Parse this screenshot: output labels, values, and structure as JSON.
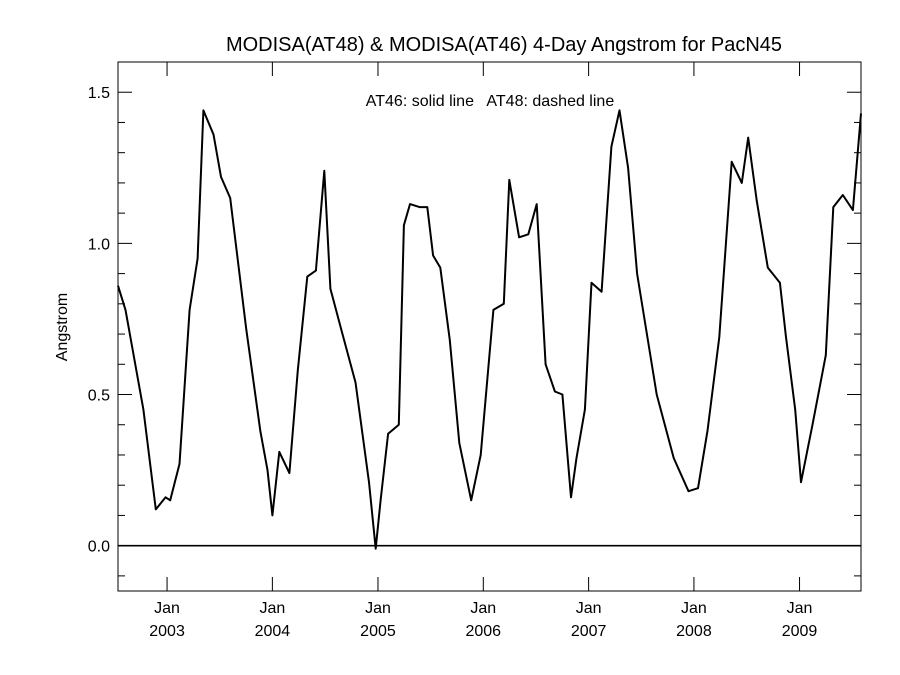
{
  "chart_data": {
    "type": "line",
    "title": "MODISA(AT48) & MODISA(AT46) 4-Day Angstrom for PacN45",
    "ylabel": "Angstrom",
    "xlabel": "",
    "annotation": "AT46: solid line   AT48: dashed line",
    "ylim": [
      -0.15,
      1.6
    ],
    "xlim": [
      "2002-07-15",
      "2009-08-02"
    ],
    "y_ticks": [
      "0.0",
      "0.5",
      "1.0",
      "1.5"
    ],
    "y_tick_values": [
      0.0,
      0.5,
      1.0,
      1.5
    ],
    "x_ticks": [
      {
        "date": "2003-01-01",
        "month": "Jan",
        "year": "2003"
      },
      {
        "date": "2004-01-01",
        "month": "Jan",
        "year": "2004"
      },
      {
        "date": "2005-01-01",
        "month": "Jan",
        "year": "2005"
      },
      {
        "date": "2006-01-01",
        "month": "Jan",
        "year": "2006"
      },
      {
        "date": "2007-01-01",
        "month": "Jan",
        "year": "2007"
      },
      {
        "date": "2008-01-01",
        "month": "Jan",
        "year": "2008"
      },
      {
        "date": "2009-01-01",
        "month": "Jan",
        "year": "2009"
      }
    ],
    "reference_line": 0.0,
    "grid": false,
    "x": [
      "2002-07-15",
      "2002-08-10",
      "2002-10-11",
      "2002-11-23",
      "2002-12-27",
      "2003-01-12",
      "2003-02-13",
      "2003-03-20",
      "2003-04-17",
      "2003-05-07",
      "2003-06-11",
      "2003-07-07",
      "2003-08-08",
      "2003-10-02",
      "2003-11-20",
      "2003-12-15",
      "2004-01-01",
      "2004-01-25",
      "2004-02-29",
      "2004-03-29",
      "2004-05-01",
      "2004-05-31",
      "2004-06-29",
      "2004-07-20",
      "2004-08-31",
      "2004-10-15",
      "2004-12-01",
      "2004-12-24",
      "2005-01-10",
      "2005-02-05",
      "2005-03-14",
      "2005-04-01",
      "2005-04-22",
      "2005-05-25",
      "2005-06-21",
      "2005-07-11",
      "2005-08-05",
      "2005-09-07",
      "2005-10-10",
      "2005-11-20",
      "2005-12-23",
      "2006-02-05",
      "2006-03-13",
      "2006-04-01",
      "2006-05-05",
      "2006-06-06",
      "2006-07-05",
      "2006-08-05",
      "2006-09-06",
      "2006-10-02",
      "2006-11-01",
      "2006-11-20",
      "2006-12-19",
      "2007-01-11",
      "2007-02-15",
      "2007-03-21",
      "2007-04-18",
      "2007-05-18",
      "2007-06-18",
      "2007-08-25",
      "2007-10-23",
      "2007-12-13",
      "2008-01-15",
      "2008-02-17",
      "2008-03-29",
      "2008-05-11",
      "2008-06-15",
      "2008-07-07",
      "2008-08-06",
      "2008-09-13",
      "2008-10-25",
      "2008-11-15",
      "2008-12-17",
      "2009-01-06",
      "2009-02-15",
      "2009-04-02",
      "2009-04-28",
      "2009-05-31",
      "2009-07-05",
      "2009-08-02"
    ],
    "series": [
      {
        "values": [
          0.86,
          0.78,
          0.45,
          0.12,
          0.16,
          0.15,
          0.27,
          0.78,
          0.95,
          1.44,
          1.36,
          1.22,
          1.15,
          0.72,
          0.38,
          0.25,
          0.1,
          0.31,
          0.24,
          0.58,
          0.89,
          0.91,
          1.24,
          0.85,
          0.7,
          0.54,
          0.21,
          -0.01,
          0.15,
          0.37,
          0.4,
          1.06,
          1.13,
          1.12,
          1.12,
          0.96,
          0.92,
          0.68,
          0.34,
          0.15,
          0.3,
          0.78,
          0.8,
          1.21,
          1.02,
          1.03,
          1.13,
          0.6,
          0.51,
          0.5,
          0.16,
          0.29,
          0.45,
          0.87,
          0.84,
          1.32,
          1.44,
          1.25,
          0.9,
          0.5,
          0.29,
          0.18,
          0.19,
          0.38,
          0.69,
          1.27,
          1.2,
          1.35,
          1.14,
          0.92,
          0.87,
          0.69,
          0.45,
          0.21,
          0.4,
          0.63,
          1.12,
          1.16,
          1.11,
          1.43
        ]
      }
    ]
  }
}
